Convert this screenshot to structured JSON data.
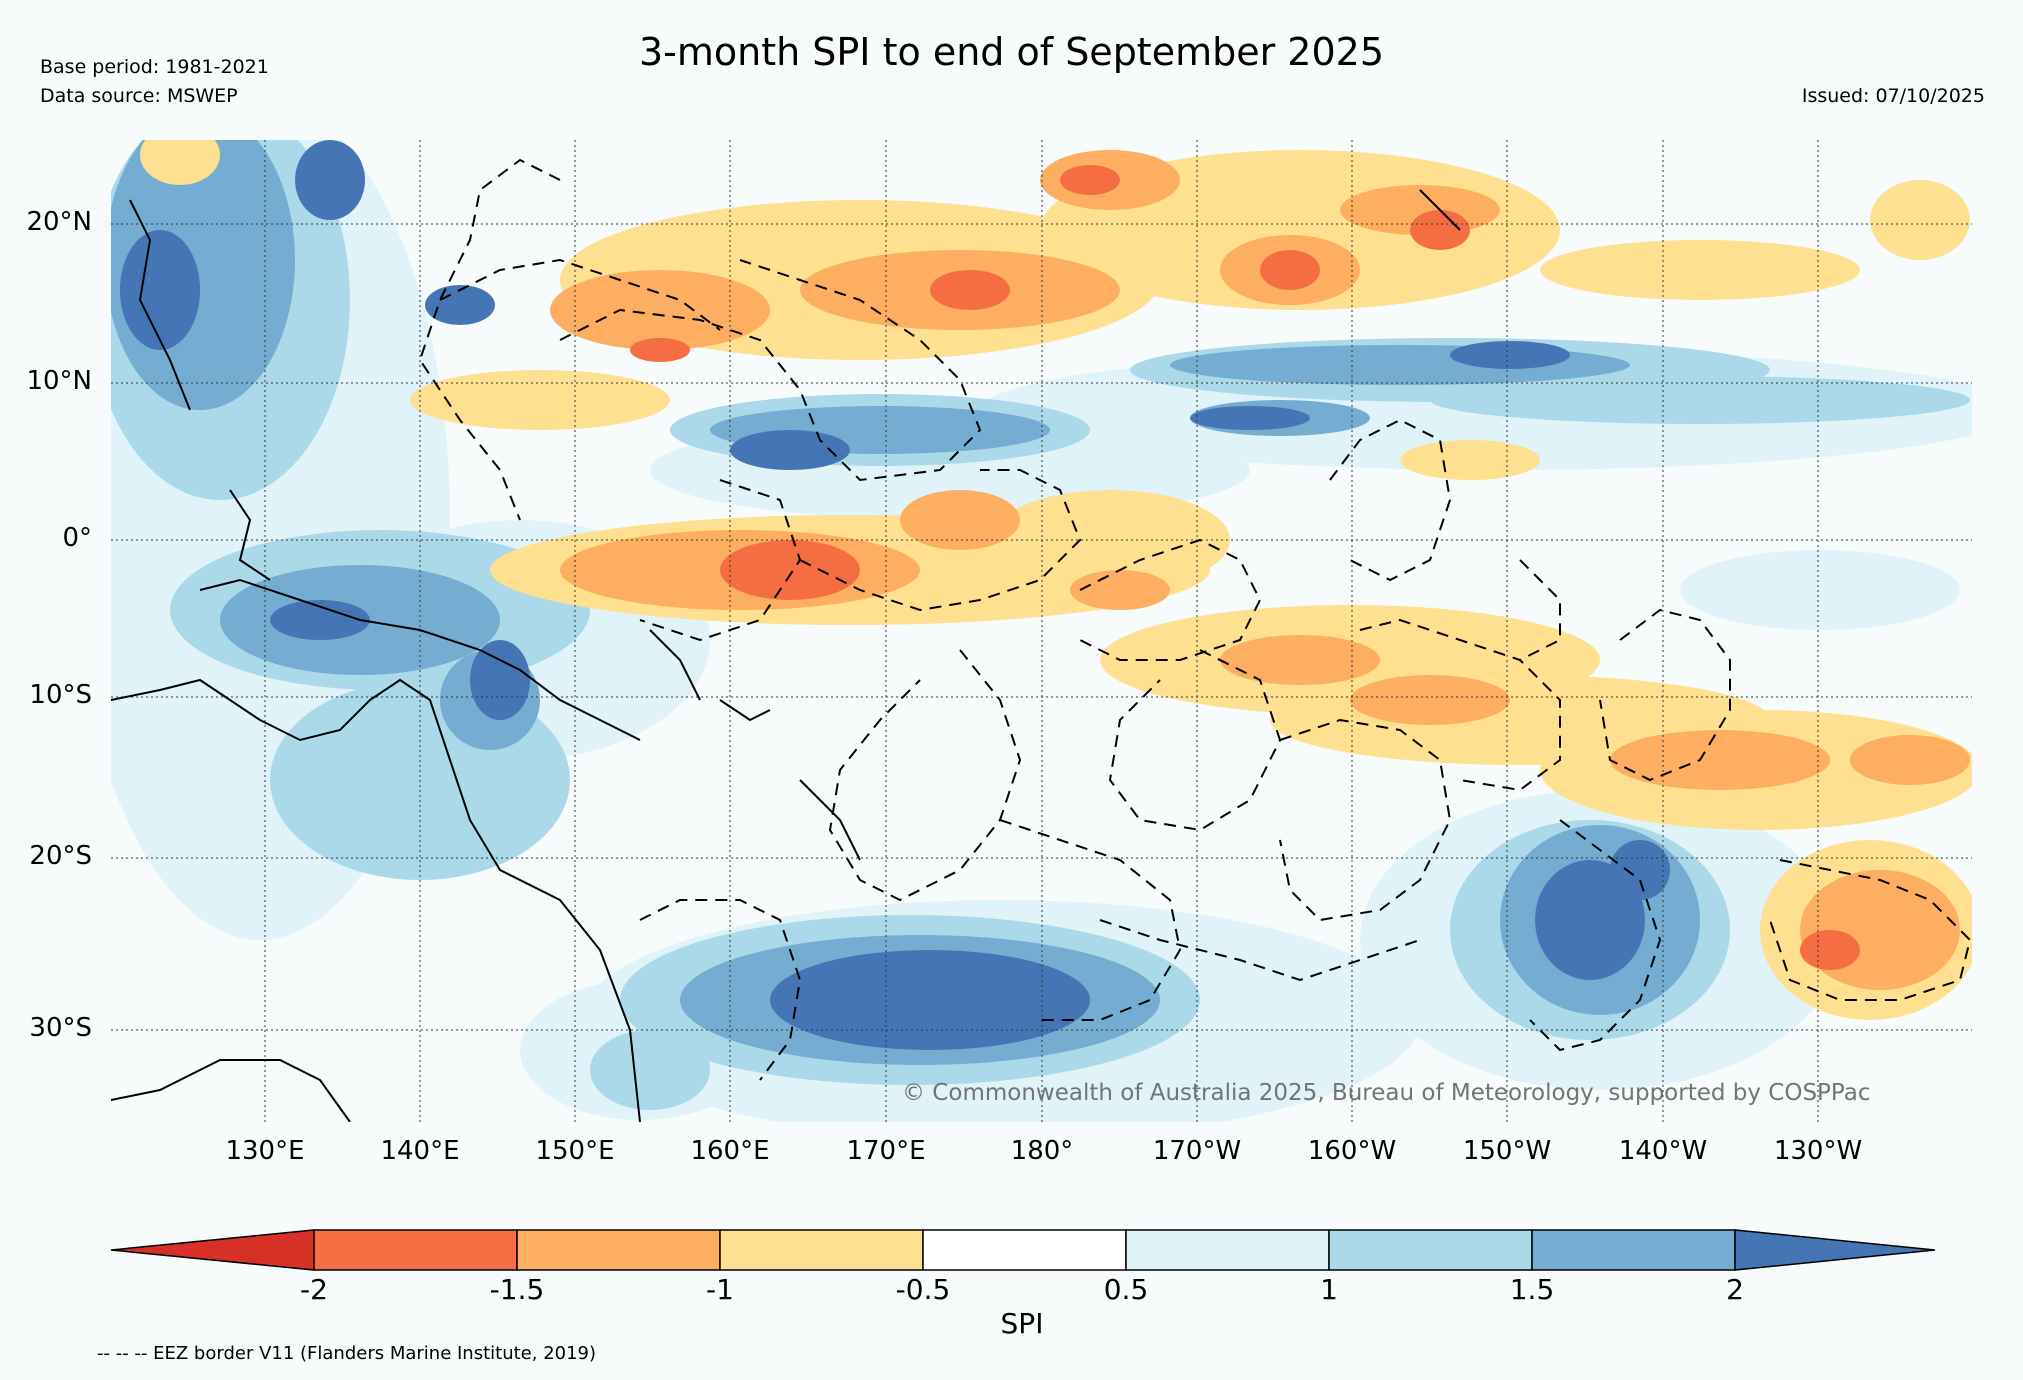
{
  "header": {
    "title": "3-month SPI to end of September 2025",
    "base_period": "Base period: 1981-2021",
    "data_source": "Data source: MSWEP",
    "issued": "Issued: 07/10/2025"
  },
  "map": {
    "lat_labels": [
      "20°N",
      "10°N",
      "0°",
      "10°S",
      "20°S",
      "30°S"
    ],
    "lon_labels": [
      "130°E",
      "140°E",
      "150°E",
      "160°E",
      "170°E",
      "180°",
      "170°W",
      "160°W",
      "150°W",
      "140°W",
      "130°W"
    ],
    "copyright": "© Commonwealth of Australia 2025, Bureau of Meteorology, supported by COSPPac"
  },
  "legend": {
    "title": "SPI",
    "tick_labels": [
      "-2",
      "-1.5",
      "-1",
      "-0.5",
      "0.5",
      "1",
      "1.5",
      "2"
    ],
    "colors": [
      "#d73027",
      "#f46d43",
      "#fdae61",
      "#fee090",
      "#ffffff",
      "#e0f3f8",
      "#abd9e9",
      "#74add1",
      "#4575b4"
    ]
  },
  "footer": {
    "eez_note": "-- -- -- EEZ border V11 (Flanders Marine Institute, 2019)"
  }
}
